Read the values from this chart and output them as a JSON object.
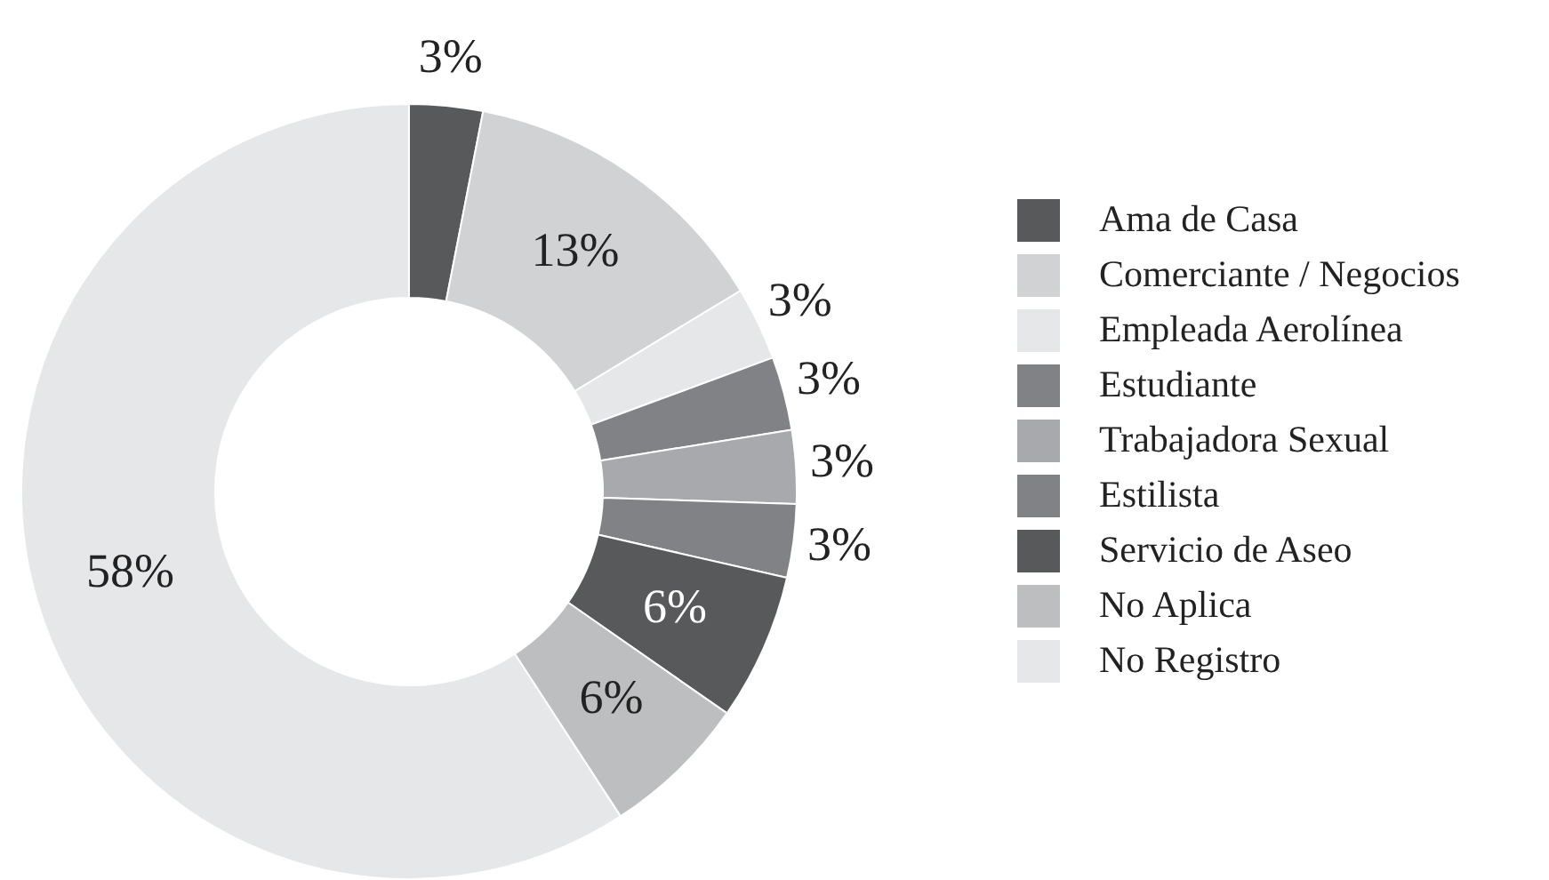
{
  "chart_data": {
    "type": "donut",
    "categories": [
      "Ama de Casa",
      "Comerciante / Negocios",
      "Empleada Aerolínea",
      "Estudiante",
      "Trabajadora Sexual",
      "Estilista",
      "Servicio de Aseo",
      "No Aplica",
      "No Registro"
    ],
    "values": [
      3,
      13,
      3,
      3,
      3,
      3,
      6,
      6,
      58
    ],
    "colors": [
      "#58595b",
      "#d1d2d4",
      "#e6e7e8",
      "#808285",
      "#a7a9ac",
      "#808285",
      "#58595b",
      "#bcbec0",
      "#e6e7e8"
    ],
    "value_labels": [
      "3%",
      "13%",
      "3%",
      "3%",
      "3%",
      "3%",
      "6%",
      "6%",
      "58%"
    ],
    "legend": "right"
  }
}
